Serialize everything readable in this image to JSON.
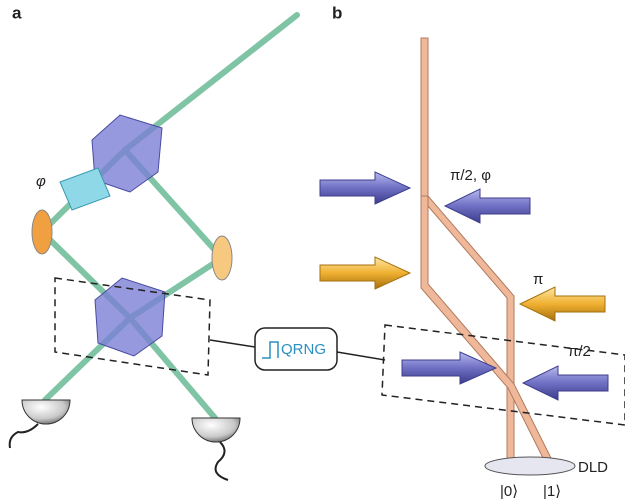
{
  "panel_a": {
    "label": "a",
    "phase_label": "φ"
  },
  "panel_b": {
    "label": "b",
    "pulse_labels": [
      "π/2, φ",
      "π",
      "π/2"
    ],
    "detector": "DLD",
    "outputs": [
      "|0⟩",
      "|1⟩"
    ]
  },
  "connector": {
    "label": "QRNG"
  }
}
